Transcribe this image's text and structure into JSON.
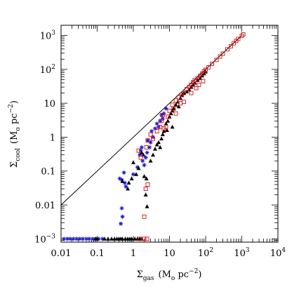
{
  "chart_data": {
    "type": "scatter",
    "x_scale": "log",
    "y_scale": "log",
    "xlim": [
      0.01,
      10000
    ],
    "ylim": [
      0.0008,
      2000
    ],
    "xlabel": {
      "symbol": "Σ",
      "sub": "gas",
      "units": "(M",
      "units_sub": "o",
      "units_tail": " pc",
      "units_sup": "−2",
      "close": ")"
    },
    "ylabel": {
      "symbol": "Σ",
      "sub": "cool",
      "units": "(M",
      "units_sub": "o",
      "units_tail": " pc",
      "units_sup": "−2",
      "close": ")"
    },
    "x_ticks": [
      {
        "value": 0.01,
        "label": "0.01"
      },
      {
        "value": 0.1,
        "label": "0.1"
      },
      {
        "value": 1,
        "label": "1"
      },
      {
        "value": 10,
        "label": "10"
      },
      {
        "value": 100,
        "label": "10",
        "sup": "2"
      },
      {
        "value": 1000,
        "label": "10",
        "sup": "3"
      },
      {
        "value": 10000,
        "label": "10",
        "sup": "4"
      }
    ],
    "y_ticks": [
      {
        "value": 0.001,
        "label": "10",
        "sup": "−3"
      },
      {
        "value": 0.01,
        "label": "0.01"
      },
      {
        "value": 0.1,
        "label": "0.1"
      },
      {
        "value": 1,
        "label": "1"
      },
      {
        "value": 10,
        "label": "10"
      },
      {
        "value": 100,
        "label": "10",
        "sup": "2"
      },
      {
        "value": 1000,
        "label": "10",
        "sup": "3"
      }
    ],
    "reference_line": {
      "x": [
        0.01,
        1000
      ],
      "y": [
        0.01,
        1000
      ],
      "color": "#000000"
    },
    "series": [
      {
        "marker": "star",
        "color": "#1a1acc",
        "points": [
          [
            0.012,
            0.001
          ],
          [
            0.015,
            0.001
          ],
          [
            0.018,
            0.001
          ],
          [
            0.022,
            0.001
          ],
          [
            0.027,
            0.001
          ],
          [
            0.033,
            0.001
          ],
          [
            0.04,
            0.001
          ],
          [
            0.05,
            0.001
          ],
          [
            0.06,
            0.001
          ],
          [
            0.075,
            0.001
          ],
          [
            0.09,
            0.001
          ],
          [
            0.11,
            0.001
          ],
          [
            0.14,
            0.001
          ],
          [
            0.45,
            0.0028
          ],
          [
            0.5,
            0.0045
          ],
          [
            0.48,
            0.008
          ],
          [
            0.42,
            0.06
          ],
          [
            0.48,
            0.055
          ],
          [
            0.55,
            0.09
          ],
          [
            0.62,
            0.035
          ],
          [
            0.58,
            0.045
          ],
          [
            1.0,
            0.08
          ],
          [
            1.3,
            0.13
          ],
          [
            1.5,
            0.3
          ],
          [
            1.6,
            0.4
          ],
          [
            1.8,
            0.2
          ],
          [
            2.0,
            0.15
          ],
          [
            2.2,
            0.25
          ],
          [
            2.4,
            0.35
          ],
          [
            2.8,
            0.5
          ],
          [
            3.0,
            0.7
          ],
          [
            3.5,
            1.0
          ],
          [
            4.0,
            1.8
          ],
          [
            4.5,
            2.5
          ],
          [
            5.0,
            2.0
          ],
          [
            5.5,
            3.0
          ],
          [
            6.0,
            4.5
          ],
          [
            6.5,
            3.5
          ],
          [
            7.0,
            5.0
          ],
          [
            8.0,
            7.0
          ],
          [
            2.5,
            0.8
          ],
          [
            1.7,
            0.5
          ],
          [
            3.2,
            1.5
          ]
        ]
      },
      {
        "marker": "triangle",
        "color": "#000000",
        "points": [
          [
            0.09,
            0.001
          ],
          [
            0.1,
            0.001
          ],
          [
            0.16,
            0.001
          ],
          [
            0.2,
            0.001
          ],
          [
            0.25,
            0.001
          ],
          [
            0.3,
            0.001
          ],
          [
            0.35,
            0.001
          ],
          [
            0.4,
            0.001
          ],
          [
            0.45,
            0.001
          ],
          [
            0.5,
            0.001
          ],
          [
            0.6,
            0.001
          ],
          [
            0.7,
            0.001
          ],
          [
            0.8,
            0.001
          ],
          [
            0.9,
            0.001
          ],
          [
            1.1,
            0.001
          ],
          [
            1.3,
            0.001
          ],
          [
            1.5,
            0.001
          ],
          [
            1.7,
            0.001
          ],
          [
            0.5,
            0.05
          ],
          [
            0.7,
            0.03
          ],
          [
            0.9,
            0.06
          ],
          [
            0.75,
            0.045
          ],
          [
            1.0,
            0.18
          ],
          [
            1.2,
            0.08
          ],
          [
            1.4,
            0.12
          ],
          [
            1.7,
            0.35
          ],
          [
            1.9,
            0.3
          ],
          [
            2.0,
            0.07
          ],
          [
            2.3,
            0.06
          ],
          [
            2.4,
            0.009
          ],
          [
            2.2,
            0.02
          ],
          [
            3.0,
            0.2
          ],
          [
            3.5,
            0.3
          ],
          [
            4.0,
            0.45
          ],
          [
            4.5,
            0.6
          ],
          [
            5.0,
            0.7
          ],
          [
            5.5,
            0.5
          ],
          [
            6.0,
            0.9
          ],
          [
            6.5,
            1.2
          ],
          [
            7.0,
            1.5
          ],
          [
            8.0,
            2.5
          ],
          [
            9.0,
            3.0
          ],
          [
            10.0,
            4.0
          ],
          [
            11.0,
            5.0
          ],
          [
            12.0,
            6.0
          ],
          [
            13.0,
            7.0
          ],
          [
            15.0,
            9.0
          ],
          [
            17.0,
            11.0
          ],
          [
            20.0,
            14.0
          ],
          [
            22.0,
            17.0
          ],
          [
            25.0,
            20.0
          ],
          [
            30.0,
            22.0
          ],
          [
            35.0,
            25.0
          ],
          [
            40.0,
            30.0
          ],
          [
            45.0,
            35.0
          ],
          [
            50.0,
            40.0
          ],
          [
            60.0,
            48.0
          ],
          [
            70.0,
            55.0
          ],
          [
            80.0,
            65.0
          ],
          [
            90.0,
            75.0
          ],
          [
            100.0,
            85.0
          ],
          [
            12.0,
            2.0
          ],
          [
            18.0,
            8.0
          ],
          [
            8.5,
            1.6
          ]
        ]
      },
      {
        "marker": "square",
        "color": "#d01010",
        "points": [
          [
            1.5,
            0.001
          ],
          [
            2.0,
            0.001
          ],
          [
            2.4,
            0.001
          ],
          [
            2.0,
            0.0045
          ],
          [
            2.2,
            0.03
          ],
          [
            2.5,
            0.04
          ],
          [
            1.4,
            0.4
          ],
          [
            1.6,
            0.25
          ],
          [
            2.3,
            0.5
          ],
          [
            2.5,
            0.8
          ],
          [
            3.0,
            1.2
          ],
          [
            3.5,
            0.9
          ],
          [
            4.5,
            1.5
          ],
          [
            5.5,
            2.0
          ],
          [
            6.0,
            3.0
          ],
          [
            6.5,
            4.5
          ],
          [
            7.0,
            1.8
          ],
          [
            8.0,
            2.0
          ],
          [
            9.0,
            4.0
          ],
          [
            10.0,
            6.0
          ],
          [
            12.0,
            9.0
          ],
          [
            13.0,
            7.0
          ],
          [
            15.0,
            12.0
          ],
          [
            18.0,
            15.0
          ],
          [
            20.0,
            10.0
          ],
          [
            22.0,
            18.0
          ],
          [
            25.0,
            20.0
          ],
          [
            30.0,
            26.0
          ],
          [
            35.0,
            30.0
          ],
          [
            40.0,
            35.0
          ],
          [
            45.0,
            42.0
          ],
          [
            50.0,
            48.0
          ],
          [
            60.0,
            55.0
          ],
          [
            70.0,
            65.0
          ],
          [
            80.0,
            75.0
          ],
          [
            90.0,
            88.0
          ],
          [
            100.0,
            97.0
          ],
          [
            120.0,
            115.0
          ],
          [
            150.0,
            145.0
          ],
          [
            200.0,
            190.0
          ],
          [
            250.0,
            240.0
          ],
          [
            300.0,
            290.0
          ],
          [
            400.0,
            390.0
          ],
          [
            500.0,
            480.0
          ],
          [
            600.0,
            590.0
          ],
          [
            700.0,
            690.0
          ],
          [
            800.0,
            790.0
          ],
          [
            1000.0,
            980.0
          ],
          [
            1100.0,
            1080.0
          ],
          [
            15.0,
            5.0
          ],
          [
            25.0,
            11.0
          ],
          [
            40.0,
            20.0
          ],
          [
            55.0,
            28.0
          ],
          [
            65.0,
            35.0
          ],
          [
            85.0,
            45.0
          ]
        ]
      }
    ]
  }
}
